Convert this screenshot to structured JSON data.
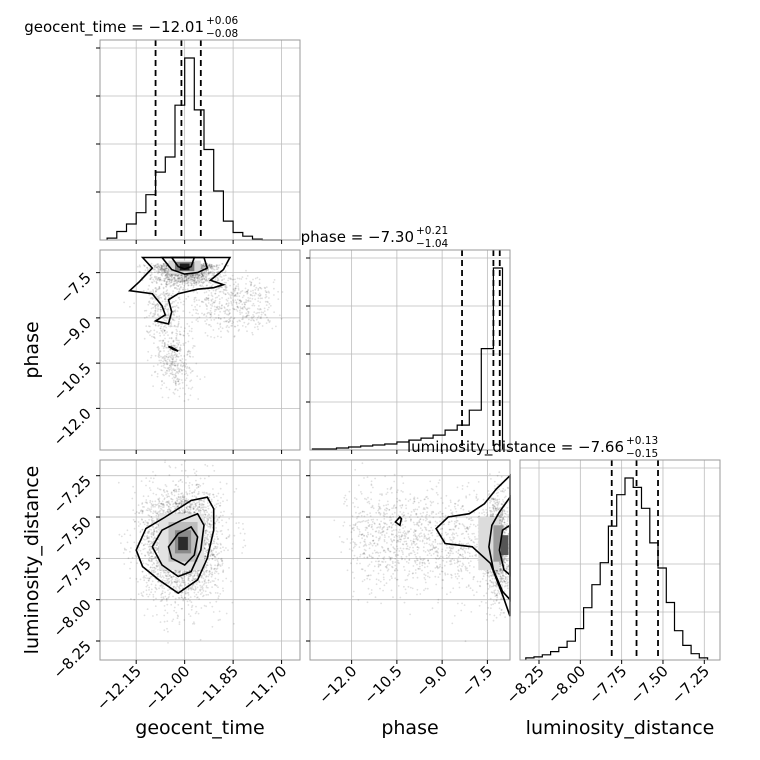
{
  "chart_data": {
    "type": "corner",
    "parameters": [
      "geocent_time",
      "phase",
      "luminosity_distance"
    ],
    "titles": [
      {
        "param": "geocent_time",
        "text": "geocent_time = −12.01",
        "plus": "+0.06",
        "minus": "−0.08"
      },
      {
        "param": "phase",
        "text": "phase = −7.30",
        "plus": "+0.21",
        "minus": "−1.04"
      },
      {
        "param": "luminosity_distance",
        "text": "luminosity_distance = −7.66",
        "plus": "+0.13",
        "minus": "−0.15"
      }
    ],
    "axis_labels": {
      "x": [
        "geocent_time",
        "phase",
        "luminosity_distance"
      ],
      "y": [
        "phase",
        "luminosity_distance"
      ]
    },
    "ranges": {
      "geocent_time": [
        -12.262,
        -11.643
      ],
      "phase": [
        -13.38,
        -6.75
      ],
      "luminosity_distance": [
        -8.365,
        -7.155
      ]
    },
    "ticks": {
      "geocent_time": {
        "values": [
          -12.15,
          -12.0,
          -11.85,
          -11.7
        ],
        "labels": [
          "−12.15",
          "−12.00",
          "−11.85",
          "−11.70"
        ]
      },
      "phase": {
        "values": [
          -12.0,
          -10.5,
          -9.0,
          -7.5
        ],
        "labels": [
          "−12.0",
          "−10.5",
          "−9.0",
          "−7.5"
        ]
      },
      "luminosity_distance": {
        "values": [
          -8.25,
          -8.0,
          -7.75,
          -7.5,
          -7.25
        ],
        "labels": [
          "−8.25",
          "−8.00",
          "−7.75",
          "−7.50",
          "−7.25"
        ]
      }
    },
    "quantiles": {
      "geocent_time": [
        -12.09,
        -12.01,
        -11.95
      ],
      "phase": [
        -8.34,
        -7.3,
        -7.09
      ],
      "luminosity_distance": [
        -7.81,
        -7.66,
        -7.53
      ]
    },
    "histograms": {
      "geocent_time": {
        "bins": [
          -12.24,
          -12.21,
          -12.18,
          -12.15,
          -12.12,
          -12.09,
          -12.06,
          -12.03,
          -12.0,
          -11.97,
          -11.94,
          -11.91,
          -11.88,
          -11.85,
          -11.82,
          -11.79,
          -11.76,
          -11.73,
          -11.7
        ],
        "counts": [
          2,
          9,
          17,
          29,
          48,
          72,
          88,
          143,
          193,
          138,
          96,
          52,
          20,
          8,
          4,
          1,
          0,
          0
        ]
      },
      "phase": {
        "bins": [
          -13.3,
          -12.9,
          -12.5,
          -12.1,
          -11.7,
          -11.3,
          -10.9,
          -10.5,
          -10.1,
          -9.7,
          -9.3,
          -8.9,
          -8.5,
          -8.1,
          -7.7,
          -7.3,
          -7.0
        ],
        "counts": [
          1,
          1,
          2,
          3,
          4,
          5,
          6,
          8,
          10,
          12,
          15,
          20,
          25,
          40,
          102,
          183
        ]
      },
      "luminosity_distance": {
        "bins": [
          -8.33,
          -8.28,
          -8.23,
          -8.18,
          -8.13,
          -8.08,
          -8.03,
          -7.98,
          -7.93,
          -7.88,
          -7.83,
          -7.78,
          -7.73,
          -7.68,
          -7.63,
          -7.58,
          -7.53,
          -7.48,
          -7.43,
          -7.38,
          -7.33,
          -7.28,
          -7.23
        ],
        "counts": [
          2,
          3,
          5,
          8,
          12,
          18,
          30,
          50,
          72,
          93,
          128,
          158,
          174,
          165,
          145,
          112,
          88,
          55,
          28,
          14,
          6,
          2
        ]
      }
    },
    "pair_structure": {
      "phase_vs_geocent_time": {
        "peak": [
          -12.01,
          -7.3
        ],
        "tail_toward": [
          -12.02,
          -10.3
        ]
      },
      "luminosity_distance_vs_geocent_time": {
        "peak": [
          -12.01,
          -7.66
        ]
      },
      "luminosity_distance_vs_phase": {
        "peak": [
          -7.1,
          -7.66
        ],
        "tail_toward": [
          -10.5,
          -7.55
        ]
      }
    }
  }
}
